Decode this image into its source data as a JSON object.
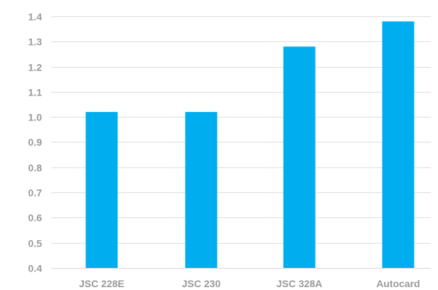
{
  "chart_data": {
    "type": "bar",
    "categories": [
      "JSC 228E",
      "JSC 230",
      "JSC 328A",
      "Autocard"
    ],
    "values": [
      1.02,
      1.02,
      1.28,
      1.38
    ],
    "title": "",
    "xlabel": "",
    "ylabel": "",
    "ylim": [
      0.4,
      1.4
    ],
    "yticks": [
      "0.4",
      "0.5",
      "0.6",
      "0.7",
      "0.8",
      "0.9",
      "1.0",
      "1.1",
      "1.2",
      "1.3",
      "1.4"
    ],
    "grid": true,
    "legend": "none",
    "bar_color": "#00aeef"
  }
}
